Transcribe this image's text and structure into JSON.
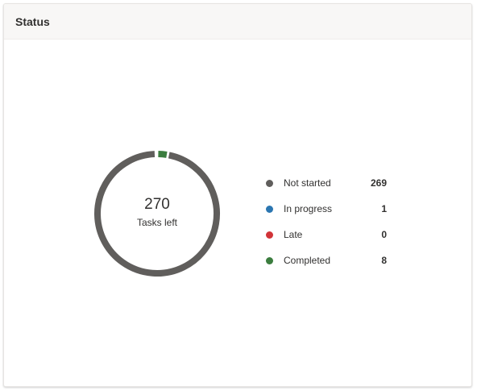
{
  "card": {
    "title": "Status"
  },
  "summary": {
    "total": "270",
    "label": "Tasks left"
  },
  "colors": {
    "not_started": "#605e5c",
    "in_progress": "#2b76b1",
    "late": "#d13438",
    "completed": "#3b7d3e"
  },
  "legend": [
    {
      "label": "Not started",
      "count": "269",
      "color": "#605e5c",
      "value": 269
    },
    {
      "label": "In progress",
      "count": "1",
      "color": "#2b76b1",
      "value": 1
    },
    {
      "label": "Late",
      "count": "0",
      "color": "#d13438",
      "value": 0
    },
    {
      "label": "Completed",
      "count": "8",
      "color": "#3b7d3e",
      "value": 8
    }
  ]
}
